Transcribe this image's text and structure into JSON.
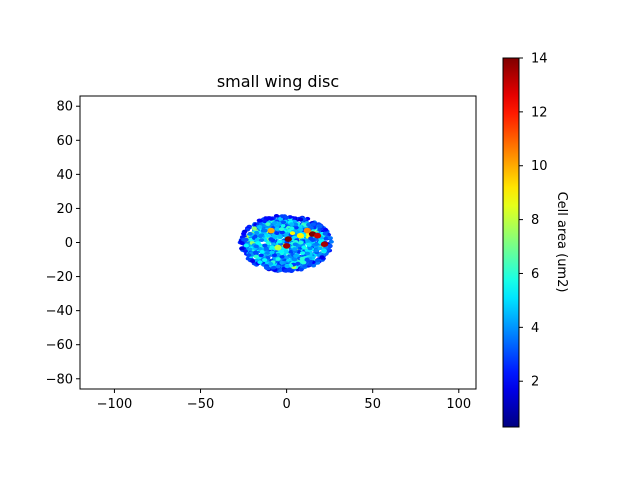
{
  "chart_data": {
    "type": "scatter",
    "title": "small wing disc",
    "xlabel": "",
    "ylabel": "",
    "xlim": [
      -120,
      110
    ],
    "ylim": [
      -86,
      86
    ],
    "xticks": [
      -100,
      -50,
      0,
      50,
      100
    ],
    "xtick_labels": [
      "−100",
      "−50",
      "0",
      "50",
      "100"
    ],
    "yticks": [
      -80,
      -60,
      -40,
      -20,
      0,
      20,
      40,
      60,
      80
    ],
    "ytick_labels": [
      "−80",
      "−60",
      "−40",
      "−20",
      "0",
      "20",
      "40",
      "60",
      "80"
    ],
    "grid": false,
    "colorbar": {
      "label": "Cell area (um2)",
      "colormap": "jet",
      "min": 0.3,
      "max": 14,
      "ticks": [
        2,
        4,
        6,
        8,
        10,
        12,
        14
      ],
      "tick_labels": [
        "2",
        "4",
        "6",
        "8",
        "10",
        "12",
        "14"
      ]
    },
    "cells_summary": {
      "x_range": [
        -27,
        26
      ],
      "y_range": [
        -17,
        16
      ],
      "typical_area": 4,
      "large_cells": [
        {
          "x": 1,
          "y": 2,
          "area": 14
        },
        {
          "x": 0,
          "y": -2,
          "area": 13.5
        },
        {
          "x": 15,
          "y": 5,
          "area": 14
        },
        {
          "x": 18,
          "y": 4,
          "area": 13
        },
        {
          "x": 22,
          "y": -1,
          "area": 13.5
        },
        {
          "x": 12,
          "y": 7,
          "area": 10.5
        },
        {
          "x": -9,
          "y": 7,
          "area": 10
        },
        {
          "x": 8,
          "y": 4,
          "area": 9
        },
        {
          "x": -5,
          "y": -3,
          "area": 8
        }
      ]
    }
  }
}
